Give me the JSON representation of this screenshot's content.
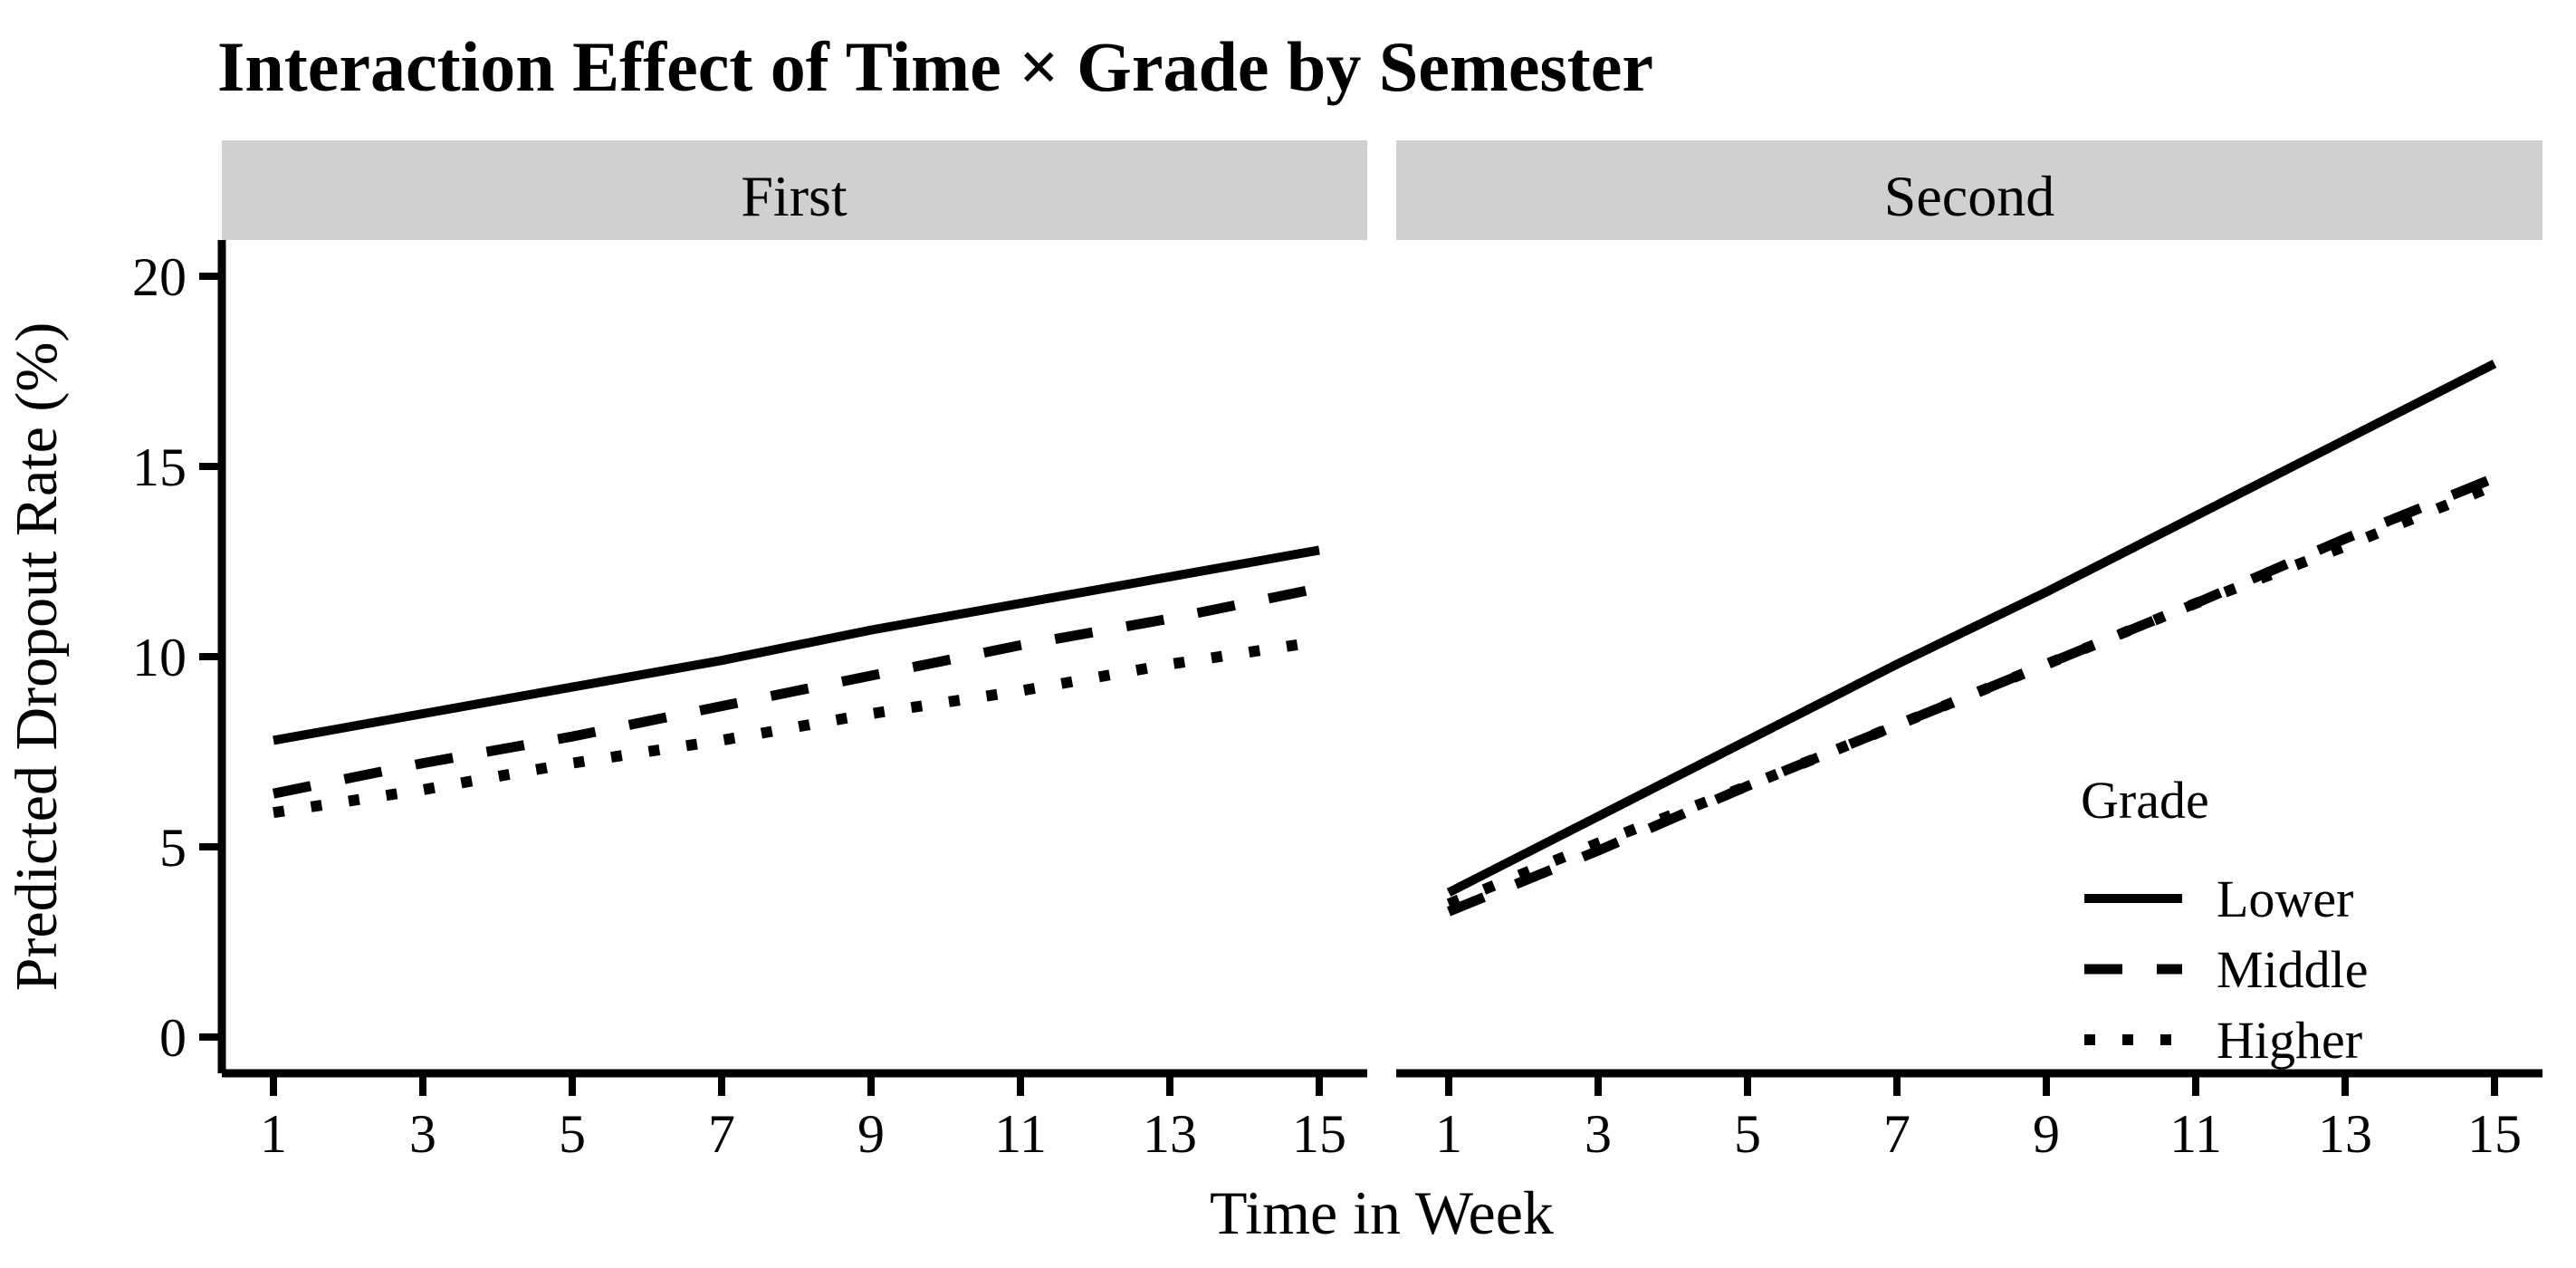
{
  "chart_data": {
    "type": "line",
    "title": "Interaction Effect of Time × Grade by Semester",
    "xlabel": "Time in Week",
    "ylabel": "Predicted Dropout Rate (%)",
    "facet_variable": "Semester",
    "xlim": [
      1,
      15
    ],
    "ylim": [
      0,
      20
    ],
    "xticks": [
      1,
      3,
      5,
      7,
      9,
      11,
      13,
      15
    ],
    "yticks": [
      0,
      5,
      10,
      15,
      20
    ],
    "grid": false,
    "line_color": "#000000",
    "strip_fill": "#d0d0d0",
    "background": "#ffffff",
    "x": [
      1,
      3,
      5,
      7,
      9,
      11,
      13,
      15
    ],
    "facets": [
      {
        "label": "First",
        "series": [
          {
            "name": "Lower",
            "linetype": "solid",
            "values": [
              7.8,
              8.5,
              9.2,
              9.9,
              10.7,
              11.4,
              12.1,
              12.8
            ]
          },
          {
            "name": "Middle",
            "linetype": "dashed",
            "values": [
              6.4,
              7.2,
              7.9,
              8.7,
              9.5,
              10.3,
              11.0,
              11.8
            ]
          },
          {
            "name": "Higher",
            "linetype": "dotted",
            "values": [
              5.9,
              6.5,
              7.2,
              7.8,
              8.5,
              9.1,
              9.8,
              10.4
            ]
          }
        ]
      },
      {
        "label": "Second",
        "series": [
          {
            "name": "Lower",
            "linetype": "solid",
            "values": [
              3.8,
              5.8,
              7.8,
              9.8,
              11.7,
              13.7,
              15.7,
              17.7
            ]
          },
          {
            "name": "Middle",
            "linetype": "dashed",
            "values": [
              3.3,
              4.9,
              6.6,
              8.2,
              9.8,
              11.4,
              13.1,
              14.7
            ]
          },
          {
            "name": "Higher",
            "linetype": "dotted",
            "values": [
              3.5,
              5.1,
              6.6,
              8.2,
              9.8,
              11.4,
              12.9,
              14.5
            ]
          }
        ]
      }
    ],
    "legend": {
      "title": "Grade",
      "position": "inside lower-right of Second facet",
      "entries": [
        {
          "label": "Lower",
          "linetype": "solid"
        },
        {
          "label": "Middle",
          "linetype": "dashed"
        },
        {
          "label": "Higher",
          "linetype": "dotted"
        }
      ]
    }
  }
}
